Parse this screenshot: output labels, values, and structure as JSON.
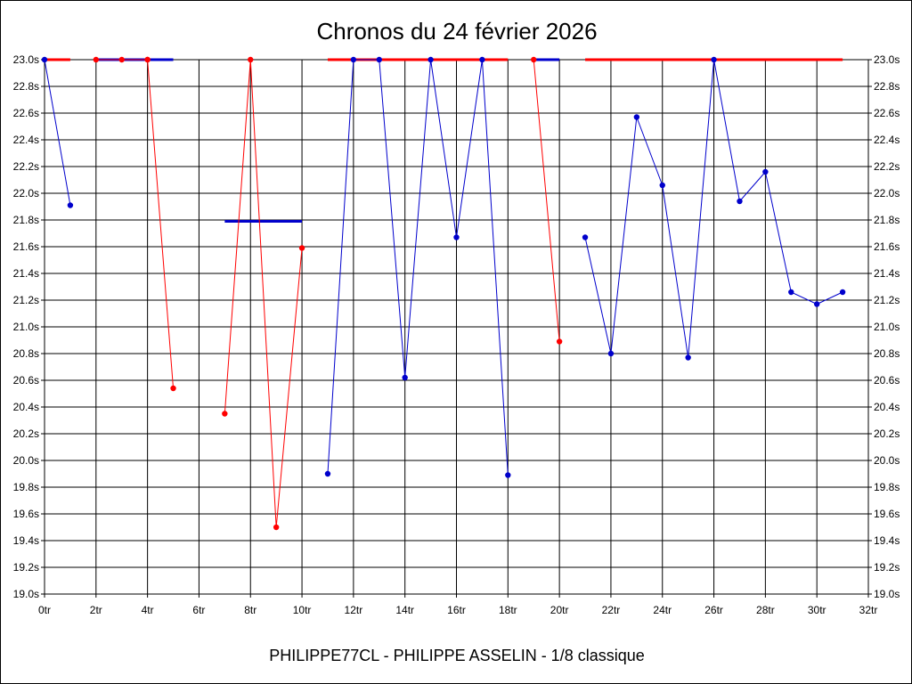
{
  "chart_data": {
    "type": "line",
    "title": "Chronos du 24 février 2026",
    "subtitle": "PHILIPPE77CL - PHILIPPE ASSELIN - 1/8 classique",
    "x_tick_labels": [
      "0tr",
      "2tr",
      "4tr",
      "6tr",
      "8tr",
      "10tr",
      "12tr",
      "14tr",
      "16tr",
      "18tr",
      "20tr",
      "22tr",
      "24tr",
      "26tr",
      "28tr",
      "30tr",
      "32tr"
    ],
    "y_tick_labels": [
      "19.0s",
      "19.2s",
      "19.4s",
      "19.6s",
      "19.8s",
      "20.0s",
      "20.2s",
      "20.4s",
      "20.6s",
      "20.8s",
      "21.0s",
      "21.2s",
      "21.4s",
      "21.6s",
      "21.8s",
      "22.0s",
      "22.2s",
      "22.4s",
      "22.6s",
      "22.8s",
      "23.0s"
    ],
    "xlim": [
      0,
      32
    ],
    "ylim": [
      19.0,
      23.0
    ],
    "grid": true,
    "colors": {
      "red": "#ff0000",
      "blue": "#0000cc"
    },
    "series": [
      {
        "color": "red",
        "x": [
          0,
          1
        ],
        "y": [
          23.0,
          23.0
        ],
        "markers": false,
        "width": 3
      },
      {
        "color": "blue",
        "x": [
          0,
          1
        ],
        "y": [
          23.0,
          21.91
        ],
        "markers": true,
        "width": 1
      },
      {
        "color": "red",
        "x": [
          2,
          3,
          4
        ],
        "y": [
          23.0,
          23.0,
          23.0
        ],
        "markers": true,
        "width": 1
      },
      {
        "color": "blue",
        "x": [
          2,
          5
        ],
        "y": [
          23.0,
          23.0
        ],
        "markers": false,
        "width": 3
      },
      {
        "color": "red",
        "x": [
          4,
          5
        ],
        "y": [
          23.0,
          20.54
        ],
        "markers": true,
        "width": 1
      },
      {
        "color": "red",
        "x": [
          7,
          8,
          9,
          10
        ],
        "y": [
          20.35,
          23.0,
          19.5,
          21.59
        ],
        "markers": true,
        "width": 1
      },
      {
        "color": "blue",
        "x": [
          7,
          10
        ],
        "y": [
          21.79,
          21.79
        ],
        "markers": false,
        "width": 3
      },
      {
        "color": "red",
        "x": [
          11,
          18
        ],
        "y": [
          23.0,
          23.0
        ],
        "markers": false,
        "width": 3
      },
      {
        "color": "blue",
        "x": [
          11,
          12,
          13,
          14,
          15,
          16,
          17,
          18
        ],
        "y": [
          19.9,
          23.0,
          23.0,
          20.62,
          23.0,
          21.67,
          23.0,
          19.89
        ],
        "markers": true,
        "width": 1
      },
      {
        "color": "red",
        "x": [
          19,
          20
        ],
        "y": [
          23.0,
          20.89
        ],
        "markers": true,
        "width": 1
      },
      {
        "color": "blue",
        "x": [
          19,
          20
        ],
        "y": [
          23.0,
          23.0
        ],
        "markers": false,
        "width": 3
      },
      {
        "color": "red",
        "x": [
          21,
          31
        ],
        "y": [
          23.0,
          23.0
        ],
        "markers": false,
        "width": 3
      },
      {
        "color": "blue",
        "x": [
          21,
          22,
          23,
          24,
          25,
          26,
          27,
          28,
          29,
          30,
          31
        ],
        "y": [
          21.67,
          20.8,
          22.57,
          22.06,
          20.77,
          23.0,
          21.94,
          22.16,
          21.26,
          21.17,
          21.26
        ],
        "markers": true,
        "width": 1
      }
    ]
  }
}
